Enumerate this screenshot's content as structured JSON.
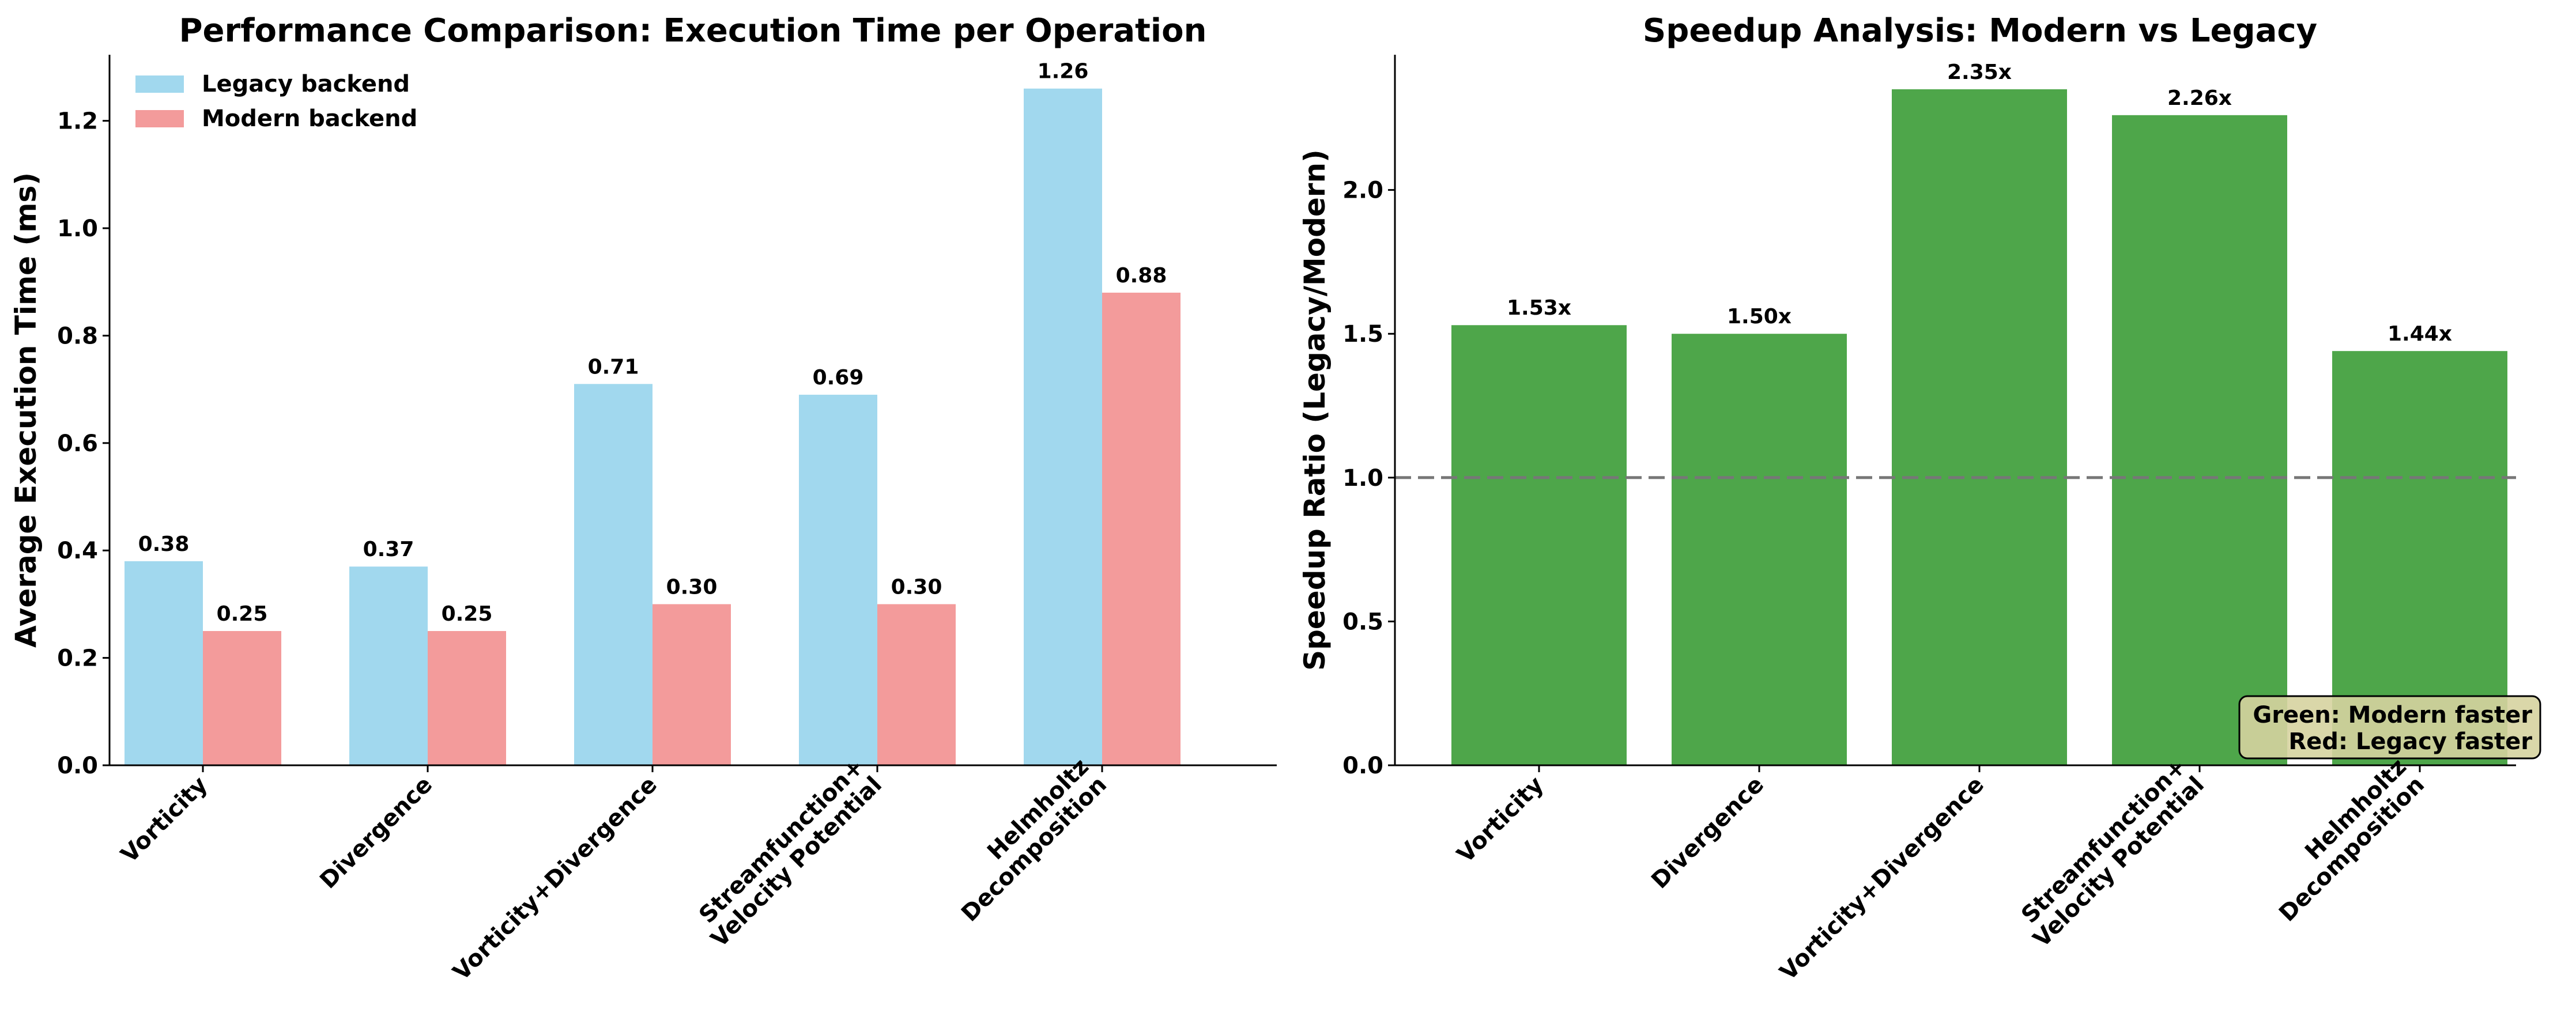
{
  "chart_data": [
    {
      "type": "bar",
      "title": "Performance Comparison: Execution Time per Operation",
      "xlabel": "",
      "ylabel": "Average Execution Time (ms)",
      "categories": [
        "Vorticity",
        "Divergence",
        "Vorticity+Divergence",
        "Streamfunction+\nVelocity Potential",
        "Helmholtz\nDecomposition"
      ],
      "series": [
        {
          "name": "Legacy backend",
          "values": [
            0.38,
            0.37,
            0.71,
            0.69,
            1.26
          ],
          "labels": [
            "0.38",
            "0.37",
            "0.71",
            "0.69",
            "1.26"
          ],
          "color": "#a1d8ee"
        },
        {
          "name": "Modern backend",
          "values": [
            0.25,
            0.25,
            0.3,
            0.3,
            0.88
          ],
          "labels": [
            "0.25",
            "0.25",
            "0.30",
            "0.30",
            "0.88"
          ],
          "color": "#f39b9b"
        }
      ],
      "ylim": [
        0,
        1.323
      ],
      "yticks": [
        0.0,
        0.2,
        0.4,
        0.6,
        0.8,
        1.0,
        1.2
      ],
      "ytick_labels": [
        "0.0",
        "0.2",
        "0.4",
        "0.6",
        "0.8",
        "1.0",
        "1.2"
      ],
      "grid": false,
      "legend_position": "top-left"
    },
    {
      "type": "bar",
      "title": "Speedup Analysis: Modern vs Legacy",
      "xlabel": "",
      "ylabel": "Speedup Ratio (Legacy/Modern)",
      "categories": [
        "Vorticity",
        "Divergence",
        "Vorticity+Divergence",
        "Streamfunction+\nVelocity Potential",
        "Helmholtz\nDecomposition"
      ],
      "series": [
        {
          "values": [
            1.53,
            1.5,
            2.35,
            2.26,
            1.44
          ],
          "labels": [
            "1.53x",
            "1.50x",
            "2.35x",
            "2.26x",
            "1.44x"
          ],
          "color": "#4ea64a"
        }
      ],
      "ylim": [
        0,
        2.47
      ],
      "yticks": [
        0.0,
        0.5,
        1.0,
        1.5,
        2.0
      ],
      "ytick_labels": [
        "0.0",
        "0.5",
        "1.0",
        "1.5",
        "2.0"
      ],
      "reference_line": {
        "y": 1.0,
        "style": "dashed",
        "color": "#777777"
      },
      "annotation": {
        "lines": [
          "Green: Modern faster",
          "Red: Legacy faster"
        ],
        "position": "bottom-right",
        "background": "#d6d3a0",
        "border": "#000000"
      },
      "grid": false
    }
  ],
  "colors": {
    "axis": "#000000",
    "text": "#000000"
  }
}
